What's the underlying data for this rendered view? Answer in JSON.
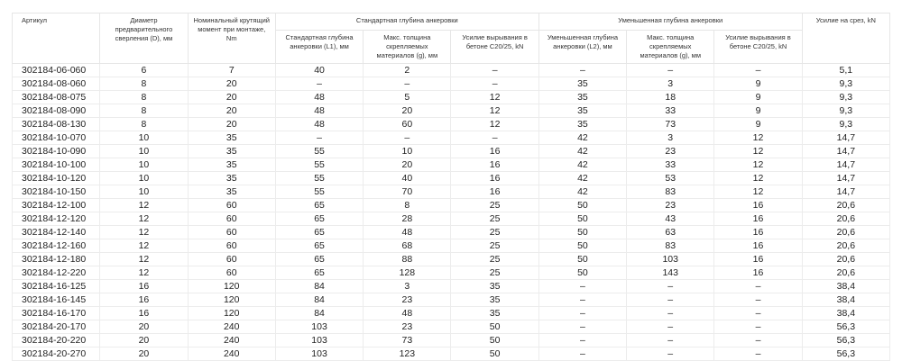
{
  "headers": {
    "article": "Артикул",
    "diameter": "Диаметр предварительного сверления (D), мм",
    "torque": "Номинальный крутящий момент при монтаже, Nm",
    "standard_group": "Стандартная глубина анкеровки",
    "reduced_group": "Уменьшенная глубина анкеровки",
    "shear": "Усилие на срез, kN",
    "std_depth": "Стандартная глубина анкеровки (L1), мм",
    "std_thickness": "Макс. толщина скрепляемых материалов (g), мм",
    "std_pull": "Усилие вырывания в бетоне C20/25, kN",
    "red_depth": "Уменьшенная глубина анкеровки (L2), мм",
    "red_thickness": "Макс. толщина скрепляемых материалов (g), мм",
    "red_pull": "Усилие вырывания в бетоне C20/25, kN"
  },
  "rows": [
    [
      "302184-06-060",
      "6",
      "7",
      "40",
      "2",
      "–",
      "–",
      "–",
      "–",
      "5,1"
    ],
    [
      "302184-08-060",
      "8",
      "20",
      "–",
      "–",
      "–",
      "35",
      "3",
      "9",
      "9,3"
    ],
    [
      "302184-08-075",
      "8",
      "20",
      "48",
      "5",
      "12",
      "35",
      "18",
      "9",
      "9,3"
    ],
    [
      "302184-08-090",
      "8",
      "20",
      "48",
      "20",
      "12",
      "35",
      "33",
      "9",
      "9,3"
    ],
    [
      "302184-08-130",
      "8",
      "20",
      "48",
      "60",
      "12",
      "35",
      "73",
      "9",
      "9,3"
    ],
    [
      "302184-10-070",
      "10",
      "35",
      "–",
      "–",
      "–",
      "42",
      "3",
      "12",
      "14,7"
    ],
    [
      "302184-10-090",
      "10",
      "35",
      "55",
      "10",
      "16",
      "42",
      "23",
      "12",
      "14,7"
    ],
    [
      "302184-10-100",
      "10",
      "35",
      "55",
      "20",
      "16",
      "42",
      "33",
      "12",
      "14,7"
    ],
    [
      "302184-10-120",
      "10",
      "35",
      "55",
      "40",
      "16",
      "42",
      "53",
      "12",
      "14,7"
    ],
    [
      "302184-10-150",
      "10",
      "35",
      "55",
      "70",
      "16",
      "42",
      "83",
      "12",
      "14,7"
    ],
    [
      "302184-12-100",
      "12",
      "60",
      "65",
      "8",
      "25",
      "50",
      "23",
      "16",
      "20,6"
    ],
    [
      "302184-12-120",
      "12",
      "60",
      "65",
      "28",
      "25",
      "50",
      "43",
      "16",
      "20,6"
    ],
    [
      "302184-12-140",
      "12",
      "60",
      "65",
      "48",
      "25",
      "50",
      "63",
      "16",
      "20,6"
    ],
    [
      "302184-12-160",
      "12",
      "60",
      "65",
      "68",
      "25",
      "50",
      "83",
      "16",
      "20,6"
    ],
    [
      "302184-12-180",
      "12",
      "60",
      "65",
      "88",
      "25",
      "50",
      "103",
      "16",
      "20,6"
    ],
    [
      "302184-12-220",
      "12",
      "60",
      "65",
      "128",
      "25",
      "50",
      "143",
      "16",
      "20,6"
    ],
    [
      "302184-16-125",
      "16",
      "120",
      "84",
      "3",
      "35",
      "–",
      "–",
      "–",
      "38,4"
    ],
    [
      "302184-16-145",
      "16",
      "120",
      "84",
      "23",
      "35",
      "–",
      "–",
      "–",
      "38,4"
    ],
    [
      "302184-16-170",
      "16",
      "120",
      "84",
      "48",
      "35",
      "–",
      "–",
      "–",
      "38,4"
    ],
    [
      "302184-20-170",
      "20",
      "240",
      "103",
      "23",
      "50",
      "–",
      "–",
      "–",
      "56,3"
    ],
    [
      "302184-20-220",
      "20",
      "240",
      "103",
      "73",
      "50",
      "–",
      "–",
      "–",
      "56,3"
    ],
    [
      "302184-20-270",
      "20",
      "240",
      "103",
      "123",
      "50",
      "–",
      "–",
      "–",
      "56,3"
    ]
  ]
}
